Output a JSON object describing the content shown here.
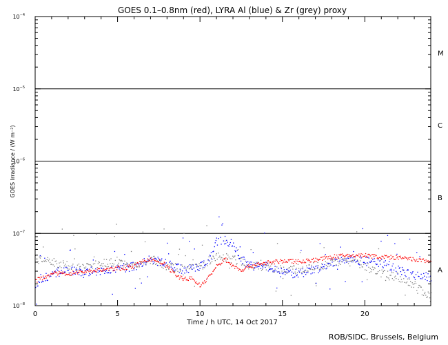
{
  "chart_data": {
    "type": "scatter",
    "title": "GOES 0.1–0.8nm (red), LYRA Al (blue) & Zr (grey) proxy",
    "xlabel": "Time / h UTC, 14 Oct 2017",
    "ylabel": "GOES Irradiance / (W m⁻²)",
    "xlim": [
      0,
      24
    ],
    "ylim_exponent": [
      -8,
      -4
    ],
    "yscale": "log",
    "x_ticks": [
      0,
      5,
      10,
      15,
      20
    ],
    "x_tick_labels": [
      "0",
      "5",
      "10",
      "15",
      "20"
    ],
    "y_tick_labels": [
      {
        "exp": -8,
        "base": "10",
        "sup": "−8"
      },
      {
        "exp": -7,
        "base": "10",
        "sup": "−7"
      },
      {
        "exp": -6,
        "base": "10",
        "sup": "−6"
      },
      {
        "exp": -5,
        "base": "10",
        "sup": "−5"
      },
      {
        "exp": -4,
        "base": "10",
        "sup": "−4"
      }
    ],
    "class_lines_exponent": [
      -7,
      -6,
      -5
    ],
    "flare_classes": [
      {
        "label": "A",
        "exp": -7.5
      },
      {
        "label": "B",
        "exp": -6.5
      },
      {
        "label": "C",
        "exp": -5.5
      },
      {
        "label": "M",
        "exp": -4.5
      }
    ],
    "series": [
      {
        "name": "GOES 0.1–0.8nm",
        "color": "#ff0000",
        "x": [
          0,
          1,
          2,
          3,
          4,
          5,
          6,
          6.8,
          7.5,
          8,
          8.5,
          9,
          9.5,
          10,
          10.5,
          11,
          11.5,
          12,
          12.5,
          13,
          13.5,
          14,
          15,
          16,
          17,
          18,
          19,
          20,
          21,
          22,
          23,
          24
        ],
        "log10": [
          -7.65,
          -7.55,
          -7.55,
          -7.52,
          -7.5,
          -7.48,
          -7.45,
          -7.35,
          -7.38,
          -7.45,
          -7.58,
          -7.62,
          -7.62,
          -7.72,
          -7.6,
          -7.45,
          -7.35,
          -7.45,
          -7.5,
          -7.45,
          -7.42,
          -7.4,
          -7.38,
          -7.38,
          -7.36,
          -7.32,
          -7.3,
          -7.3,
          -7.32,
          -7.33,
          -7.36,
          -7.38
        ]
      },
      {
        "name": "LYRA Al proxy",
        "color": "#0000ff",
        "x": [
          0,
          1,
          2,
          3,
          4,
          5,
          6,
          7,
          8,
          9,
          10,
          10.7,
          11,
          11.5,
          12,
          12.5,
          13,
          14,
          15,
          16,
          17,
          18,
          19,
          20,
          21,
          22,
          23,
          24
        ],
        "log10": [
          -7.7,
          -7.55,
          -7.5,
          -7.55,
          -7.5,
          -7.48,
          -7.45,
          -7.35,
          -7.42,
          -7.5,
          -7.45,
          -7.3,
          -7.1,
          -7.08,
          -7.15,
          -7.35,
          -7.45,
          -7.45,
          -7.55,
          -7.55,
          -7.5,
          -7.4,
          -7.35,
          -7.38,
          -7.4,
          -7.5,
          -7.58,
          -7.6
        ]
      },
      {
        "name": "LYRA Zr proxy",
        "color": "#808080",
        "x": [
          0,
          1,
          2,
          3,
          4,
          5,
          6,
          7,
          8,
          9,
          10,
          11,
          12,
          13,
          14,
          15,
          16,
          17,
          18,
          19,
          20,
          21,
          22,
          23,
          24
        ],
        "log10": [
          -7.35,
          -7.38,
          -7.45,
          -7.48,
          -7.4,
          -7.4,
          -7.45,
          -7.35,
          -7.45,
          -7.48,
          -7.45,
          -7.3,
          -7.35,
          -7.45,
          -7.45,
          -7.5,
          -7.5,
          -7.45,
          -7.4,
          -7.38,
          -7.45,
          -7.55,
          -7.6,
          -7.7,
          -7.9
        ]
      }
    ]
  },
  "credit": "ROB/SIDC, Brussels, Belgium"
}
